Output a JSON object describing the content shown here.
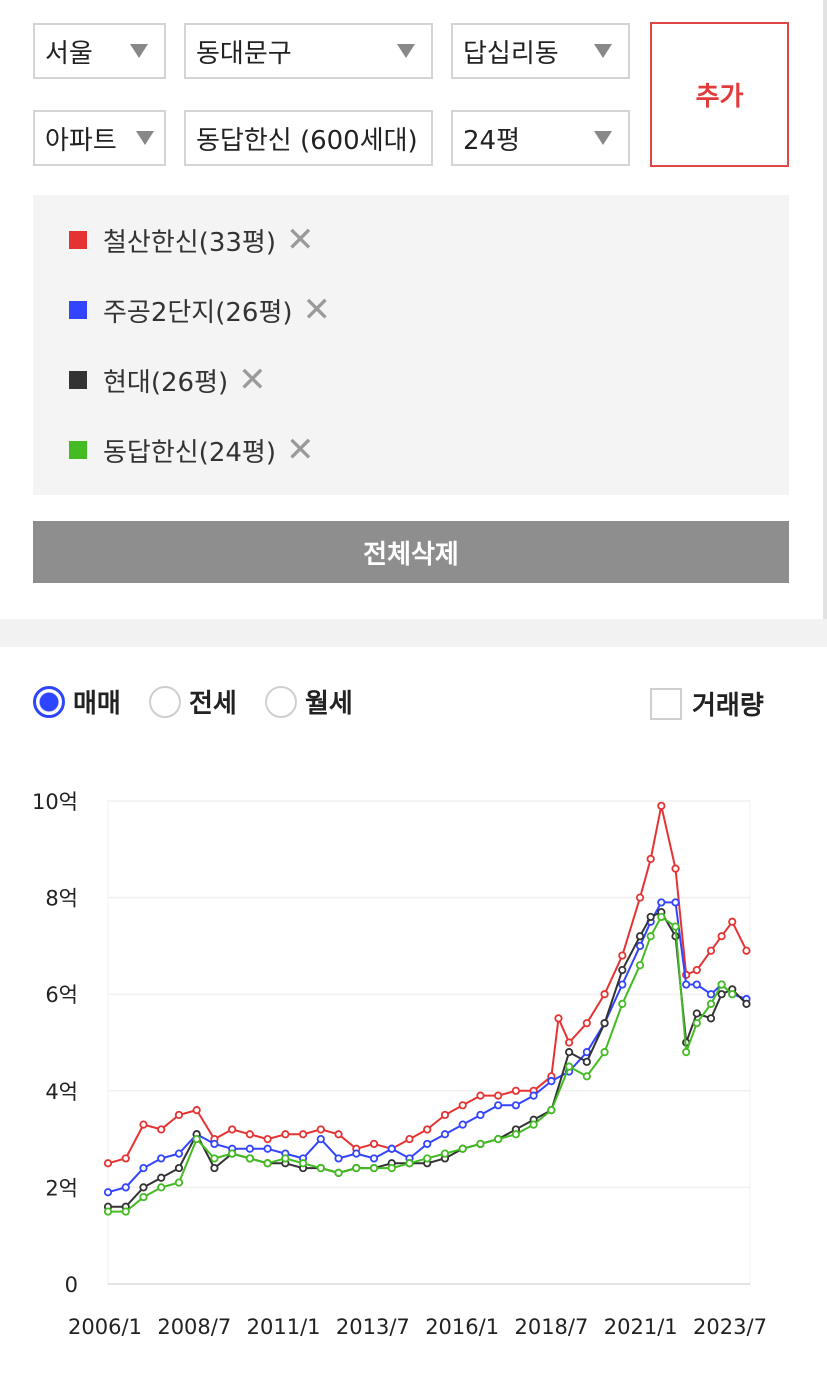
{
  "filters": {
    "city": "서울",
    "district": "동대문구",
    "dong": "답십리동",
    "property_type": "아파트",
    "complex": "동답한신 (600세대)",
    "size": "24평"
  },
  "add_button": "추가",
  "selected": [
    {
      "label": "철산한신(33평)",
      "color": "#e53333"
    },
    {
      "label": "주공2단지(26평)",
      "color": "#3344ff"
    },
    {
      "label": "현대(26평)",
      "color": "#333333"
    },
    {
      "label": "동답한신(24평)",
      "color": "#44bb22"
    }
  ],
  "delete_all": "전체삭제",
  "deal_types": [
    {
      "label": "매매",
      "selected": true
    },
    {
      "label": "전세",
      "selected": false
    },
    {
      "label": "월세",
      "selected": false
    }
  ],
  "volume_label": "거래량",
  "chart_data": {
    "type": "line",
    "yticks": [
      "0",
      "2억",
      "4억",
      "6억",
      "8억",
      "10억"
    ],
    "ylim": [
      0,
      10
    ],
    "xticks": [
      "2006/1",
      "2008/7",
      "2011/1",
      "2013/7",
      "2016/1",
      "2018/7",
      "2021/1",
      "2023/7"
    ],
    "xlim": [
      2006.0,
      2024.1
    ],
    "series": [
      {
        "name": "철산한신(33평)",
        "color": "#e53333",
        "x": [
          2006.0,
          2006.5,
          2007.0,
          2007.5,
          2008.0,
          2008.5,
          2009.0,
          2009.5,
          2010.0,
          2010.5,
          2011.0,
          2011.5,
          2012.0,
          2012.5,
          2013.0,
          2013.5,
          2014.0,
          2014.5,
          2015.0,
          2015.5,
          2016.0,
          2016.5,
          2017.0,
          2017.5,
          2018.0,
          2018.5,
          2018.7,
          2019.0,
          2019.5,
          2020.0,
          2020.5,
          2021.0,
          2021.3,
          2021.6,
          2022.0,
          2022.3,
          2022.6,
          2023.0,
          2023.3,
          2023.6,
          2024.0
        ],
        "y": [
          2.5,
          2.6,
          3.3,
          3.2,
          3.5,
          3.6,
          3.0,
          3.2,
          3.1,
          3.0,
          3.1,
          3.1,
          3.2,
          3.1,
          2.8,
          2.9,
          2.8,
          3.0,
          3.2,
          3.5,
          3.7,
          3.9,
          3.9,
          4.0,
          4.0,
          4.3,
          5.5,
          5.0,
          5.4,
          6.0,
          6.8,
          8.0,
          8.8,
          9.9,
          8.6,
          6.4,
          6.5,
          6.9,
          7.2,
          7.5,
          6.9
        ]
      },
      {
        "name": "주공2단지(26평)",
        "color": "#3344ff",
        "x": [
          2006.0,
          2006.5,
          2007.0,
          2007.5,
          2008.0,
          2008.5,
          2009.0,
          2009.5,
          2010.0,
          2010.5,
          2011.0,
          2011.5,
          2012.0,
          2012.5,
          2013.0,
          2013.5,
          2014.0,
          2014.5,
          2015.0,
          2015.5,
          2016.0,
          2016.5,
          2017.0,
          2017.5,
          2018.0,
          2018.5,
          2019.0,
          2019.5,
          2020.0,
          2020.5,
          2021.0,
          2021.3,
          2021.6,
          2022.0,
          2022.3,
          2022.6,
          2023.0,
          2023.3,
          2023.6,
          2024.0
        ],
        "y": [
          1.9,
          2.0,
          2.4,
          2.6,
          2.7,
          3.1,
          2.9,
          2.8,
          2.8,
          2.8,
          2.7,
          2.6,
          3.0,
          2.6,
          2.7,
          2.6,
          2.8,
          2.6,
          2.9,
          3.1,
          3.3,
          3.5,
          3.7,
          3.7,
          3.9,
          4.2,
          4.4,
          4.8,
          5.4,
          6.2,
          7.0,
          7.5,
          7.9,
          7.9,
          6.2,
          6.2,
          6.0,
          6.2,
          6.0,
          5.9
        ]
      },
      {
        "name": "현대(26평)",
        "color": "#333333",
        "x": [
          2006.0,
          2006.5,
          2007.0,
          2007.5,
          2008.0,
          2008.5,
          2009.0,
          2009.5,
          2010.0,
          2010.5,
          2011.0,
          2011.5,
          2012.0,
          2012.5,
          2013.0,
          2013.5,
          2014.0,
          2014.5,
          2015.0,
          2015.5,
          2016.0,
          2016.5,
          2017.0,
          2017.5,
          2018.0,
          2018.5,
          2019.0,
          2019.5,
          2020.0,
          2020.5,
          2021.0,
          2021.3,
          2021.6,
          2022.0,
          2022.3,
          2022.6,
          2023.0,
          2023.3,
          2023.6,
          2024.0
        ],
        "y": [
          1.6,
          1.6,
          2.0,
          2.2,
          2.4,
          3.1,
          2.4,
          2.7,
          2.6,
          2.5,
          2.5,
          2.4,
          2.4,
          2.3,
          2.4,
          2.4,
          2.5,
          2.5,
          2.5,
          2.6,
          2.8,
          2.9,
          3.0,
          3.2,
          3.4,
          3.6,
          4.8,
          4.6,
          5.4,
          6.5,
          7.2,
          7.6,
          7.7,
          7.2,
          5.0,
          5.6,
          5.5,
          6.0,
          6.1,
          5.8
        ]
      },
      {
        "name": "동답한신(24평)",
        "color": "#44bb22",
        "x": [
          2006.0,
          2006.5,
          2007.0,
          2007.5,
          2008.0,
          2008.5,
          2009.0,
          2009.5,
          2010.0,
          2010.5,
          2011.0,
          2011.5,
          2012.0,
          2012.5,
          2013.0,
          2013.5,
          2014.0,
          2014.5,
          2015.0,
          2015.5,
          2016.0,
          2016.5,
          2017.0,
          2017.5,
          2018.0,
          2018.5,
          2019.0,
          2019.5,
          2020.0,
          2020.5,
          2021.0,
          2021.3,
          2021.6,
          2022.0,
          2022.3,
          2022.6,
          2023.0,
          2023.3,
          2023.6
        ],
        "y": [
          1.5,
          1.5,
          1.8,
          2.0,
          2.1,
          3.0,
          2.6,
          2.7,
          2.6,
          2.5,
          2.6,
          2.5,
          2.4,
          2.3,
          2.4,
          2.4,
          2.4,
          2.5,
          2.6,
          2.7,
          2.8,
          2.9,
          3.0,
          3.1,
          3.3,
          3.6,
          4.5,
          4.3,
          4.8,
          5.8,
          6.6,
          7.2,
          7.6,
          7.4,
          4.8,
          5.4,
          5.8,
          6.2,
          6.0
        ]
      }
    ]
  }
}
